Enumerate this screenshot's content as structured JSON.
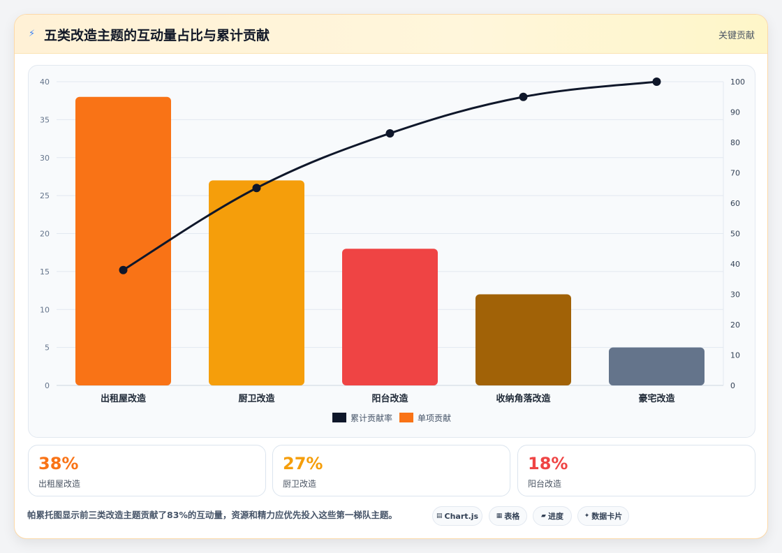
{
  "header": {
    "title": "五类改造主题的互动量占比与累计贡献",
    "badge": "关键贡献"
  },
  "chart_data": {
    "type": "bar",
    "categories": [
      "出租屋改造",
      "厨卫改造",
      "阳台改造",
      "收纳角落改造",
      "豪宅改造"
    ],
    "series": [
      {
        "name": "单项贡献",
        "type": "bar",
        "axis": "left",
        "values": [
          38,
          27,
          18,
          12,
          5
        ]
      },
      {
        "name": "累计贡献率",
        "type": "line",
        "axis": "right",
        "values": [
          38,
          65,
          83,
          95,
          100
        ]
      }
    ],
    "bar_colors": [
      "#f97316",
      "#f59e0b",
      "#ef4444",
      "#a16207",
      "#64748b"
    ],
    "line_color": "#0f172a",
    "y_left": {
      "min": 0,
      "max": 40,
      "ticks": [
        "0",
        "5",
        "10",
        "15",
        "20",
        "25",
        "30",
        "35",
        "40"
      ]
    },
    "y_right": {
      "min": 0,
      "max": 100,
      "ticks": [
        "0",
        "10",
        "20",
        "30",
        "40",
        "50",
        "60",
        "70",
        "80",
        "90",
        "100"
      ]
    },
    "legend": {
      "placement": "bottom",
      "items": [
        "累计贡献率",
        "单项贡献"
      ]
    },
    "grid": true
  },
  "stats": [
    {
      "pct": "38%",
      "label": "出租屋改造",
      "color": "#f97316"
    },
    {
      "pct": "27%",
      "label": "厨卫改造",
      "color": "#f59e0b"
    },
    {
      "pct": "18%",
      "label": "阳台改造",
      "color": "#ef4444"
    }
  ],
  "footer": {
    "note": "帕累托图显示前三类改造主题贡献了83%的互动量，资源和精力应优先投入这些第一梯队主题。",
    "tags": [
      {
        "icon": "chart-icon",
        "label": "Chart.js"
      },
      {
        "icon": "table-icon",
        "label": "表格"
      },
      {
        "icon": "progress-icon",
        "label": "进度"
      },
      {
        "icon": "sparkle-icon",
        "label": "数据卡片"
      }
    ]
  }
}
